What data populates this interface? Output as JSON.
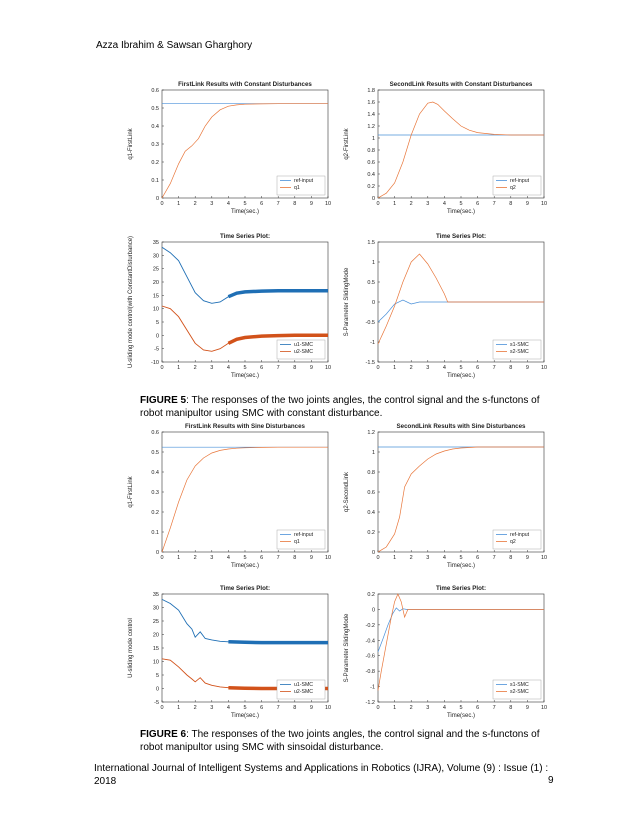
{
  "header": {
    "authors": "Azza Ibrahim & Sawsan Gharghory"
  },
  "figure5": {
    "label": "FIGURE 5",
    "caption": ": The responses of the two joints angles, the control signal and the s-functons  of robot manipultor using SMC with constant disturbance."
  },
  "figure6": {
    "label": "FIGURE 6",
    "caption": ": The responses of the two joints angles, the control signal and the s-functons  of robot manipultor using SMC with sinsoidal disturbance."
  },
  "footer": {
    "citation": "International Journal of Intelligent Systems and Applications in Robotics (IJRA), Volume (9) : Issue (1) : 2018",
    "page": "9"
  },
  "chart_data": [
    {
      "id": "f5a",
      "type": "line",
      "title": "FirstLink Results with Constant Disturbances",
      "xlabel": "Time(sec.)",
      "ylabel": "q1-FirstLink",
      "xlim": [
        0,
        10
      ],
      "ylim": [
        0,
        0.6
      ],
      "xticks": [
        0,
        1,
        2,
        3,
        4,
        5,
        6,
        7,
        8,
        9,
        10
      ],
      "yticks": [
        0,
        0.1,
        0.2,
        0.3,
        0.4,
        0.5,
        0.6
      ],
      "legend": "bottom-right",
      "series": [
        {
          "name": "ref-input",
          "color": "#4a90d9",
          "x": [
            0,
            10
          ],
          "y": [
            0.524,
            0.524
          ]
        },
        {
          "name": "q1",
          "color": "#e8763a",
          "x": [
            0,
            0.5,
            1,
            1.4,
            1.8,
            2.2,
            2.6,
            3,
            3.5,
            4,
            4.5,
            5,
            6,
            7,
            8,
            9,
            10
          ],
          "y": [
            0,
            0.08,
            0.19,
            0.26,
            0.29,
            0.33,
            0.4,
            0.45,
            0.49,
            0.51,
            0.517,
            0.521,
            0.523,
            0.524,
            0.524,
            0.524,
            0.524
          ]
        }
      ]
    },
    {
      "id": "f5b",
      "type": "line",
      "title": "SecondLink Results with Constant Disturbances",
      "xlabel": "Time(sec.)",
      "ylabel": "q2-FirstLink",
      "xlim": [
        0,
        10
      ],
      "ylim": [
        0,
        1.8
      ],
      "xticks": [
        0,
        1,
        2,
        3,
        4,
        5,
        6,
        7,
        8,
        9,
        10
      ],
      "yticks": [
        0,
        0.2,
        0.4,
        0.6,
        0.8,
        1,
        1.2,
        1.4,
        1.6,
        1.8
      ],
      "legend": "bottom-right",
      "series": [
        {
          "name": "ref-input",
          "color": "#4a90d9",
          "x": [
            0,
            10
          ],
          "y": [
            1.05,
            1.05
          ]
        },
        {
          "name": "q2",
          "color": "#e8763a",
          "x": [
            0,
            0.5,
            1,
            1.5,
            2,
            2.5,
            3,
            3.3,
            3.6,
            4,
            4.5,
            5,
            5.5,
            6,
            7,
            8,
            9,
            10
          ],
          "y": [
            0,
            0.08,
            0.25,
            0.6,
            1.05,
            1.4,
            1.58,
            1.6,
            1.56,
            1.45,
            1.32,
            1.2,
            1.13,
            1.09,
            1.06,
            1.05,
            1.05,
            1.05
          ]
        }
      ]
    },
    {
      "id": "f5c",
      "type": "line",
      "title": "Time Series Plot:",
      "xlabel": "Time(sec.)",
      "ylabel": "U-sliding mode control(with ConstantDisturbance)",
      "xlim": [
        0,
        10
      ],
      "ylim": [
        -10,
        35
      ],
      "xticks": [
        0,
        1,
        2,
        3,
        4,
        5,
        6,
        7,
        8,
        9,
        10
      ],
      "yticks": [
        -10,
        -5,
        0,
        5,
        10,
        15,
        20,
        25,
        30,
        35
      ],
      "legend": "bottom-right",
      "series": [
        {
          "name": "u1-SMC",
          "color": "#1f6fb5",
          "x": [
            0,
            0.5,
            1,
            1.5,
            2,
            2.5,
            3,
            3.5,
            4,
            4.5,
            5,
            6,
            7,
            8,
            9,
            10
          ],
          "y": [
            33,
            31,
            28,
            22,
            16,
            13,
            12,
            12.5,
            14.5,
            15.8,
            16.3,
            16.6,
            16.7,
            16.7,
            16.7,
            16.7
          ]
        },
        {
          "name": "u2-SMC",
          "color": "#d2521a",
          "x": [
            0,
            0.5,
            1,
            1.5,
            2,
            2.5,
            3,
            3.5,
            4,
            4.5,
            5,
            6,
            7,
            8,
            9,
            10
          ],
          "y": [
            11,
            10,
            7,
            2,
            -3,
            -5.5,
            -6,
            -5,
            -3,
            -1.5,
            -0.8,
            -0.3,
            -0.1,
            0,
            0,
            0
          ]
        }
      ]
    },
    {
      "id": "f5d",
      "type": "line",
      "title": "Time Series Plot:",
      "xlabel": "Time(sec.)",
      "ylabel": "S-Parameter SlidingMode",
      "xlim": [
        0,
        10
      ],
      "ylim": [
        -1.5,
        1.5
      ],
      "xticks": [
        0,
        1,
        2,
        3,
        4,
        5,
        6,
        7,
        8,
        9,
        10
      ],
      "yticks": [
        -1.5,
        -1,
        -0.5,
        0,
        0.5,
        1,
        1.5
      ],
      "legend": "bottom-right",
      "series": [
        {
          "name": "s1-SMC",
          "color": "#4a90d9",
          "x": [
            0,
            0.5,
            1,
            1.5,
            2,
            2.5,
            3,
            3.5,
            4,
            5,
            10
          ],
          "y": [
            -0.5,
            -0.3,
            -0.05,
            0.05,
            -0.05,
            0,
            0,
            0,
            0,
            0,
            0
          ]
        },
        {
          "name": "s2-SMC",
          "color": "#e8763a",
          "x": [
            0,
            0.5,
            1,
            1.5,
            2,
            2.5,
            3,
            3.5,
            4,
            4.2,
            5,
            10
          ],
          "y": [
            -1.05,
            -0.6,
            -0.1,
            0.5,
            1.0,
            1.2,
            0.95,
            0.6,
            0.2,
            0,
            0,
            0
          ]
        }
      ]
    },
    {
      "id": "f6a",
      "type": "line",
      "title": "FirstLink Results with Sine Disturbances",
      "xlabel": "Time(sec.)",
      "ylabel": "q1-FirstLink",
      "xlim": [
        0,
        10
      ],
      "ylim": [
        0,
        0.6
      ],
      "xticks": [
        0,
        1,
        2,
        3,
        4,
        5,
        6,
        7,
        8,
        9,
        10
      ],
      "yticks": [
        0,
        0.1,
        0.2,
        0.3,
        0.4,
        0.5,
        0.6
      ],
      "legend": "bottom-right",
      "series": [
        {
          "name": "ref-input",
          "color": "#4a90d9",
          "x": [
            0,
            10
          ],
          "y": [
            0.524,
            0.524
          ]
        },
        {
          "name": "q1",
          "color": "#e8763a",
          "x": [
            0,
            0.5,
            1,
            1.5,
            2,
            2.5,
            3,
            3.5,
            4,
            4.5,
            5,
            6,
            7,
            8,
            9,
            10
          ],
          "y": [
            0,
            0.12,
            0.25,
            0.36,
            0.43,
            0.47,
            0.495,
            0.508,
            0.515,
            0.519,
            0.521,
            0.523,
            0.524,
            0.524,
            0.524,
            0.524
          ]
        }
      ]
    },
    {
      "id": "f6b",
      "type": "line",
      "title": "SecondLink Results with Sine Disturbances",
      "xlabel": "Time(sec.)",
      "ylabel": "q2-SecondLink",
      "xlim": [
        0,
        10
      ],
      "ylim": [
        0,
        1.2
      ],
      "xticks": [
        0,
        1,
        2,
        3,
        4,
        5,
        6,
        7,
        8,
        9,
        10
      ],
      "yticks": [
        0,
        0.2,
        0.4,
        0.6,
        0.8,
        1,
        1.2
      ],
      "legend": "bottom-right",
      "series": [
        {
          "name": "ref-input",
          "color": "#4a90d9",
          "x": [
            0,
            10
          ],
          "y": [
            1.05,
            1.05
          ]
        },
        {
          "name": "q2",
          "color": "#e8763a",
          "x": [
            0,
            0.5,
            1,
            1.3,
            1.6,
            2,
            2.5,
            3,
            3.5,
            4,
            4.5,
            5,
            6,
            7,
            8,
            9,
            10
          ],
          "y": [
            0,
            0.05,
            0.18,
            0.35,
            0.65,
            0.78,
            0.86,
            0.93,
            0.98,
            1.01,
            1.03,
            1.04,
            1.05,
            1.05,
            1.05,
            1.05,
            1.05
          ]
        }
      ]
    },
    {
      "id": "f6c",
      "type": "line",
      "title": "Time Series Plot:",
      "xlabel": "Time(sec.)",
      "ylabel": "U-sliding mode control",
      "xlim": [
        0,
        10
      ],
      "ylim": [
        -5,
        35
      ],
      "xticks": [
        0,
        1,
        2,
        3,
        4,
        5,
        6,
        7,
        8,
        9,
        10
      ],
      "yticks": [
        -5,
        0,
        5,
        10,
        15,
        20,
        25,
        30,
        35
      ],
      "legend": "bottom-right",
      "series": [
        {
          "name": "u1-SMC",
          "color": "#1f6fb5",
          "x": [
            0,
            0.5,
            1,
            1.5,
            1.8,
            2,
            2.3,
            2.6,
            3,
            3.5,
            4,
            5,
            6,
            7,
            8,
            9,
            10
          ],
          "y": [
            33,
            31.5,
            29,
            24,
            22,
            19,
            21,
            18.5,
            18,
            17.5,
            17.3,
            17.1,
            17,
            17,
            17,
            17,
            17
          ]
        },
        {
          "name": "u2-SMC",
          "color": "#d2521a",
          "x": [
            0,
            0.5,
            1,
            1.5,
            1.8,
            2,
            2.3,
            2.6,
            3,
            3.5,
            4,
            5,
            6,
            7,
            8,
            9,
            10
          ],
          "y": [
            11,
            10.5,
            8,
            5,
            3.5,
            2.5,
            4,
            2,
            1.2,
            0.6,
            0.3,
            0.1,
            0,
            0,
            0,
            0,
            0
          ]
        }
      ]
    },
    {
      "id": "f6d",
      "type": "line",
      "title": "Time Series Plot:",
      "xlabel": "Time(sec.)",
      "ylabel": "S-Parameter SlidingMode",
      "xlim": [
        0,
        10
      ],
      "ylim": [
        -1.2,
        0.2
      ],
      "xticks": [
        0,
        1,
        2,
        3,
        4,
        5,
        6,
        7,
        8,
        9,
        10
      ],
      "yticks": [
        -1.2,
        -1,
        -0.8,
        -0.6,
        -0.4,
        -0.2,
        0,
        0.2
      ],
      "legend": "bottom-right",
      "series": [
        {
          "name": "s1-SMC",
          "color": "#4a90d9",
          "x": [
            0,
            0.3,
            0.6,
            0.9,
            1.1,
            1.3,
            1.5,
            1.7,
            2,
            3,
            10
          ],
          "y": [
            -0.55,
            -0.38,
            -0.2,
            -0.05,
            0.02,
            -0.02,
            0.01,
            0,
            0,
            0,
            0
          ]
        },
        {
          "name": "s2-SMC",
          "color": "#e8763a",
          "x": [
            0,
            0.2,
            0.5,
            0.8,
            1,
            1.2,
            1.4,
            1.6,
            1.8,
            2,
            3,
            10
          ],
          "y": [
            -1.05,
            -0.8,
            -0.45,
            -0.1,
            0.1,
            0.2,
            0.1,
            -0.1,
            0,
            0,
            0,
            0
          ]
        }
      ]
    }
  ]
}
